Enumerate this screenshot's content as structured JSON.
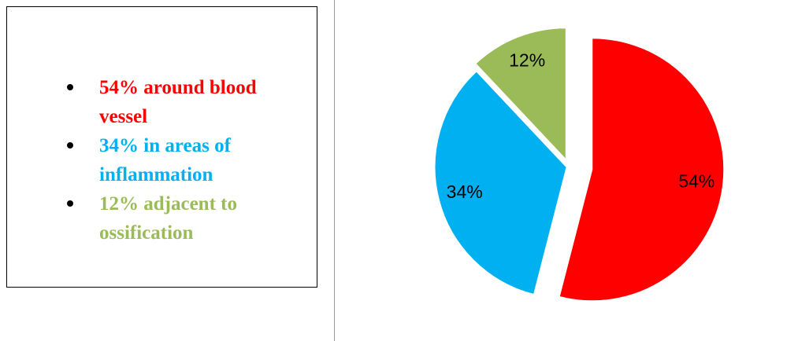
{
  "chart_data": {
    "type": "pie",
    "categories": [
      "54% around blood vessel",
      "34% in areas of inflammation",
      "12% adjacent to ossification"
    ],
    "values": [
      54,
      34,
      12
    ],
    "value_labels": [
      "54%",
      "34%",
      "12%"
    ],
    "colors": [
      "#ff0000",
      "#00b0f0",
      "#9bbb59"
    ]
  }
}
